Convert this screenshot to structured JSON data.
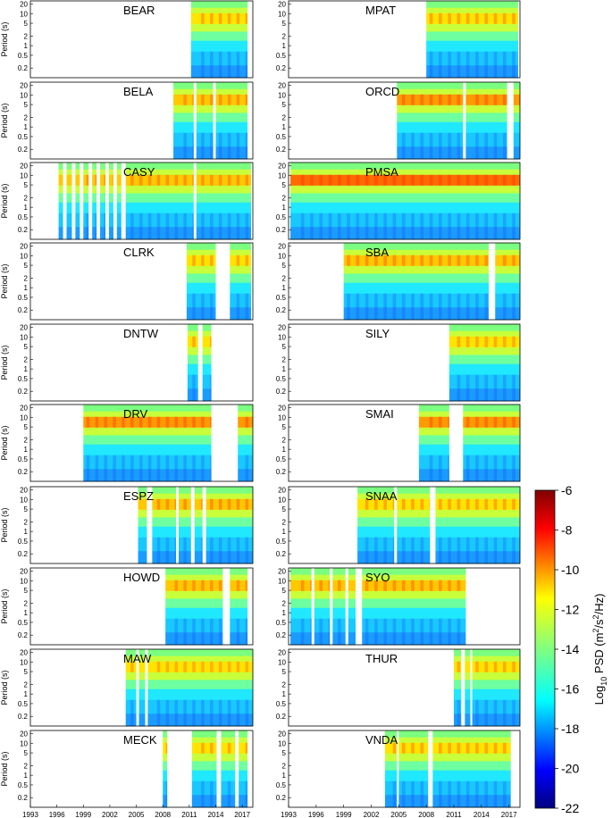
{
  "chart_data": {
    "type": "heatmap",
    "title": "",
    "xlabel": "",
    "ylabel": "Period (s)",
    "x_ticks": [
      "1993",
      "1996",
      "1999",
      "2002",
      "2005",
      "2008",
      "2011",
      "2014",
      "2017"
    ],
    "x_range": [
      1993,
      2018.2
    ],
    "y_ticks": [
      "20",
      "10",
      "5",
      "2",
      "1",
      "0.5",
      "0.2"
    ],
    "y_range": [
      0.1,
      25
    ],
    "colorbar": {
      "label_base": "Log",
      "label_sub": "10",
      "label_main": " PSD (m",
      "label_sup1": "2",
      "label_mid": "/s",
      "label_sup2": "2",
      "label_end": "/Hz)",
      "ticks": [
        "-6",
        "-8",
        "-10",
        "-12",
        "-14",
        "-16",
        "-18",
        "-20",
        "-22"
      ],
      "range": [
        -22,
        -6
      ],
      "colormap": "jet"
    },
    "panels": [
      {
        "station": "BEAR",
        "column": "left",
        "microseism_level": 0.55,
        "data_spans": [
          [
            2011.2,
            2017.6
          ]
        ]
      },
      {
        "station": "MPAT",
        "column": "right",
        "microseism_level": 0.55,
        "data_spans": [
          [
            2008.0,
            2018.0
          ]
        ]
      },
      {
        "station": "BELA",
        "column": "left",
        "microseism_level": 0.6,
        "data_spans": [
          [
            2009.2,
            2011.5
          ],
          [
            2011.8,
            2013.7
          ],
          [
            2014.0,
            2017.6
          ]
        ]
      },
      {
        "station": "ORCD",
        "column": "right",
        "microseism_level": 0.72,
        "data_spans": [
          [
            2004.8,
            2012.0
          ],
          [
            2012.3,
            2016.8
          ],
          [
            2017.5,
            2018.2
          ]
        ]
      },
      {
        "station": "CASY",
        "column": "left",
        "microseism_level": 0.6,
        "data_spans": [
          [
            1996.2,
            1996.7
          ],
          [
            1997.1,
            1997.7
          ],
          [
            1998.1,
            1998.6
          ],
          [
            1999.0,
            1999.6
          ],
          [
            2000.0,
            2000.5
          ],
          [
            2000.9,
            2001.5
          ],
          [
            2001.9,
            2002.4
          ],
          [
            2002.8,
            2003.3
          ],
          [
            2003.8,
            2011.5
          ],
          [
            2011.8,
            2018.0
          ]
        ]
      },
      {
        "station": "PMSA",
        "column": "right",
        "microseism_level": 0.75,
        "data_spans": [
          [
            1993.2,
            2018.2
          ]
        ]
      },
      {
        "station": "CLRK",
        "column": "left",
        "microseism_level": 0.55,
        "data_spans": [
          [
            2010.7,
            2014.0
          ],
          [
            2015.6,
            2018.0
          ]
        ]
      },
      {
        "station": "SBA",
        "column": "right",
        "microseism_level": 0.62,
        "data_spans": [
          [
            1999.0,
            2014.8
          ],
          [
            2015.5,
            2018.2
          ]
        ]
      },
      {
        "station": "DNTW",
        "column": "left",
        "microseism_level": 0.55,
        "data_spans": [
          [
            2010.8,
            2012.0
          ],
          [
            2012.5,
            2013.5
          ]
        ]
      },
      {
        "station": "SILY",
        "column": "right",
        "microseism_level": 0.5,
        "data_spans": [
          [
            2010.5,
            2018.2
          ]
        ]
      },
      {
        "station": "DRV",
        "column": "left",
        "microseism_level": 0.7,
        "data_spans": [
          [
            1999.0,
            2013.5
          ],
          [
            2016.5,
            2018.2
          ]
        ]
      },
      {
        "station": "SMAI",
        "column": "right",
        "microseism_level": 0.72,
        "data_spans": [
          [
            2007.2,
            2010.5
          ],
          [
            2012.0,
            2018.2
          ]
        ]
      },
      {
        "station": "ESPZ",
        "column": "left",
        "microseism_level": 0.65,
        "data_spans": [
          [
            2005.2,
            2006.2
          ],
          [
            2006.8,
            2009.5
          ],
          [
            2009.8,
            2011.2
          ],
          [
            2011.6,
            2012.5
          ],
          [
            2012.9,
            2018.2
          ]
        ]
      },
      {
        "station": "SNAA",
        "column": "right",
        "microseism_level": 0.55,
        "data_spans": [
          [
            2000.5,
            2004.5
          ],
          [
            2004.8,
            2008.4
          ],
          [
            2009.0,
            2018.2
          ]
        ]
      },
      {
        "station": "HOWD",
        "column": "left",
        "microseism_level": 0.58,
        "data_spans": [
          [
            2008.3,
            2014.8
          ],
          [
            2015.6,
            2017.6
          ]
        ]
      },
      {
        "station": "SYO",
        "column": "right",
        "microseism_level": 0.62,
        "data_spans": [
          [
            1993.2,
            1995.5
          ],
          [
            1995.8,
            1997.5
          ],
          [
            1997.8,
            1999.2
          ],
          [
            1999.5,
            2000.3
          ],
          [
            2001.0,
            2012.3
          ]
        ]
      },
      {
        "station": "MAW",
        "column": "left",
        "microseism_level": 0.45,
        "data_spans": [
          [
            2003.8,
            2005.0
          ],
          [
            2005.3,
            2006.0
          ],
          [
            2006.3,
            2018.2
          ]
        ]
      },
      {
        "station": "THUR",
        "column": "right",
        "microseism_level": 0.52,
        "data_spans": [
          [
            2011.0,
            2011.8
          ],
          [
            2012.2,
            2012.8
          ],
          [
            2013.0,
            2018.2
          ]
        ]
      },
      {
        "station": "MECK",
        "column": "left",
        "microseism_level": 0.55,
        "data_spans": [
          [
            2008.0,
            2008.5
          ],
          [
            2011.3,
            2014.1
          ],
          [
            2014.6,
            2016.2
          ],
          [
            2016.6,
            2017.6
          ]
        ]
      },
      {
        "station": "VNDA",
        "column": "right",
        "microseism_level": 0.55,
        "data_spans": [
          [
            2003.5,
            2004.8
          ],
          [
            2005.0,
            2008.2
          ],
          [
            2008.7,
            2017.2
          ]
        ]
      }
    ]
  }
}
